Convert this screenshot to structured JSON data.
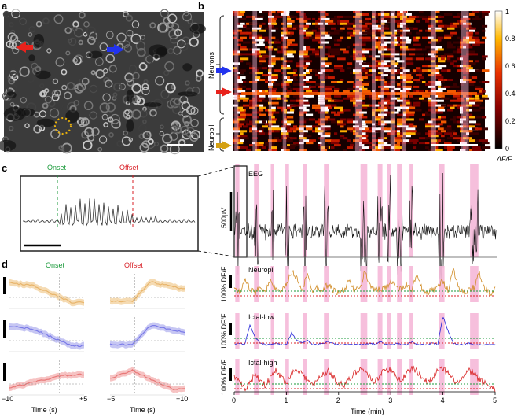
{
  "panels": {
    "a": {
      "letter": "a"
    },
    "b": {
      "letter": "b",
      "group_labels": [
        "Neurons",
        "Neuropil"
      ],
      "colorbar": {
        "label": "ΔF/F",
        "ticks": [
          "1",
          "0.8",
          "0.6",
          "0.4",
          "0.2",
          "0"
        ]
      }
    },
    "c": {
      "letter": "c",
      "onset_label": "Onset",
      "offset_label": "Offset",
      "eeg_label": "EEG",
      "scale_label": "500µV"
    },
    "d": {
      "letter": "d",
      "onset_label": "Onset",
      "offset_label": "Offset",
      "xlabel": "Time (s)",
      "left_ticks": [
        "−10",
        "+5"
      ],
      "right_ticks": [
        "−5",
        "+10"
      ]
    }
  },
  "traces": {
    "rows": [
      {
        "name": "Neuropil",
        "ylabel": "100% DF/F",
        "color": "#d08a22"
      },
      {
        "name": "Ictal-low",
        "ylabel": "100% DF/F",
        "color": "#2020d8"
      },
      {
        "name": "Ictal-high",
        "ylabel": "100% DF/F",
        "color": "#d82020"
      }
    ],
    "xlabel": "Time (min)",
    "xticks": [
      "0",
      "1",
      "2",
      "3",
      "4",
      "5"
    ]
  },
  "colors": {
    "onset": "#1a9a3a",
    "offset": "#d81f26",
    "seizure_band": "#f5b8d8",
    "arrow_blue": "#2233ee",
    "arrow_red": "#e8221c",
    "arrow_gold": "#d4a012"
  },
  "chart_data": {
    "type": "line",
    "title": "",
    "xlabel": "Time (min)",
    "ylabel": "100% DF/F",
    "xlim": [
      0,
      5
    ],
    "seizure_intervals_min": [
      [
        0.02,
        0.1
      ],
      [
        0.38,
        0.47
      ],
      [
        0.7,
        0.76
      ],
      [
        0.98,
        1.05
      ],
      [
        1.32,
        1.4
      ],
      [
        1.72,
        1.81
      ],
      [
        2.42,
        2.55
      ],
      [
        2.75,
        2.84
      ],
      [
        2.93,
        3.0
      ],
      [
        3.12,
        3.22
      ],
      [
        3.36,
        3.43
      ],
      [
        3.92,
        4.03
      ],
      [
        4.52,
        4.68
      ]
    ],
    "series": [
      {
        "name": "Neuropil",
        "x": [
          0,
          0.1,
          0.2,
          0.3,
          0.4,
          0.5,
          0.6,
          0.7,
          0.8,
          0.9,
          1.0,
          1.1,
          1.2,
          1.3,
          1.4,
          1.5,
          1.6,
          1.7,
          1.8,
          1.9,
          2.0,
          2.1,
          2.2,
          2.3,
          2.4,
          2.5,
          2.6,
          2.7,
          2.8,
          2.9,
          3.0,
          3.1,
          3.2,
          3.3,
          3.4,
          3.5,
          3.6,
          3.7,
          3.8,
          3.9,
          4.0,
          4.1,
          4.2,
          4.3,
          4.4,
          4.5,
          4.6,
          4.7,
          4.8,
          4.9,
          5.0
        ],
        "y": [
          0.4,
          0.2,
          0.7,
          0.3,
          0.2,
          0.4,
          0.3,
          0.6,
          0.3,
          0.2,
          0.5,
          0.9,
          0.7,
          0.3,
          0.8,
          0.3,
          0.4,
          0.3,
          0.5,
          0.3,
          0.2,
          0.3,
          0.6,
          0.3,
          0.3,
          0.9,
          0.5,
          0.3,
          0.3,
          0.4,
          0.6,
          0.4,
          0.3,
          0.5,
          0.3,
          0.8,
          0.3,
          0.2,
          0.3,
          0.4,
          0.6,
          0.3,
          1.0,
          0.4,
          0.2,
          0.3,
          0.4,
          0.9,
          0.3,
          0.2,
          0.3
        ]
      },
      {
        "name": "Ictal-low",
        "x": [
          0,
          0.1,
          0.2,
          0.3,
          0.4,
          0.5,
          0.6,
          0.7,
          0.8,
          0.9,
          1.0,
          1.1,
          1.2,
          1.3,
          1.4,
          1.5,
          1.6,
          1.7,
          1.8,
          1.9,
          2.0,
          2.1,
          2.2,
          2.3,
          2.4,
          2.5,
          2.6,
          2.7,
          2.8,
          2.9,
          3.0,
          3.1,
          3.2,
          3.3,
          3.4,
          3.5,
          3.6,
          3.7,
          3.8,
          3.9,
          4.0,
          4.1,
          4.2,
          4.3,
          4.4,
          4.5,
          4.6,
          4.7,
          4.8,
          4.9,
          5.0
        ],
        "y": [
          0.05,
          0.1,
          0.05,
          0.7,
          0.3,
          0.1,
          0.05,
          0.05,
          0.1,
          0.05,
          0.05,
          0.45,
          0.2,
          0.1,
          0.2,
          0.05,
          0.05,
          0.1,
          0.15,
          0.1,
          0.05,
          0.05,
          0.05,
          0.05,
          0.05,
          0.05,
          0.1,
          0.05,
          0.15,
          0.05,
          0.05,
          0.1,
          0.05,
          0.05,
          0.15,
          0.05,
          0.05,
          0.05,
          0.1,
          0.05,
          1.0,
          0.5,
          0.1,
          0.05,
          0.05,
          0.1,
          0.05,
          0.05,
          0.05,
          0.05,
          0.05
        ]
      },
      {
        "name": "Ictal-high",
        "x": [
          0,
          0.1,
          0.2,
          0.3,
          0.4,
          0.5,
          0.6,
          0.7,
          0.8,
          0.9,
          1.0,
          1.1,
          1.2,
          1.3,
          1.4,
          1.5,
          1.6,
          1.7,
          1.8,
          1.9,
          2.0,
          2.1,
          2.2,
          2.3,
          2.4,
          2.5,
          2.6,
          2.7,
          2.8,
          2.9,
          3.0,
          3.1,
          3.2,
          3.3,
          3.4,
          3.5,
          3.6,
          3.7,
          3.8,
          3.9,
          4.0,
          4.1,
          4.2,
          4.3,
          4.4,
          4.5,
          4.6,
          4.7,
          4.8,
          4.9,
          5.0
        ],
        "y": [
          0.5,
          0.3,
          0.1,
          0.3,
          0.6,
          0.4,
          0.2,
          0.5,
          0.7,
          0.5,
          0.3,
          0.6,
          0.8,
          0.6,
          0.4,
          0.2,
          0.4,
          0.6,
          0.7,
          0.5,
          0.3,
          0.2,
          0.4,
          0.6,
          0.8,
          0.7,
          0.5,
          0.3,
          0.6,
          0.8,
          0.7,
          0.5,
          0.4,
          0.6,
          0.8,
          0.7,
          0.5,
          0.3,
          0.5,
          0.7,
          0.8,
          0.6,
          0.4,
          0.3,
          0.5,
          0.7,
          0.6,
          0.4,
          0.3,
          0.2,
          0.1
        ]
      }
    ]
  }
}
